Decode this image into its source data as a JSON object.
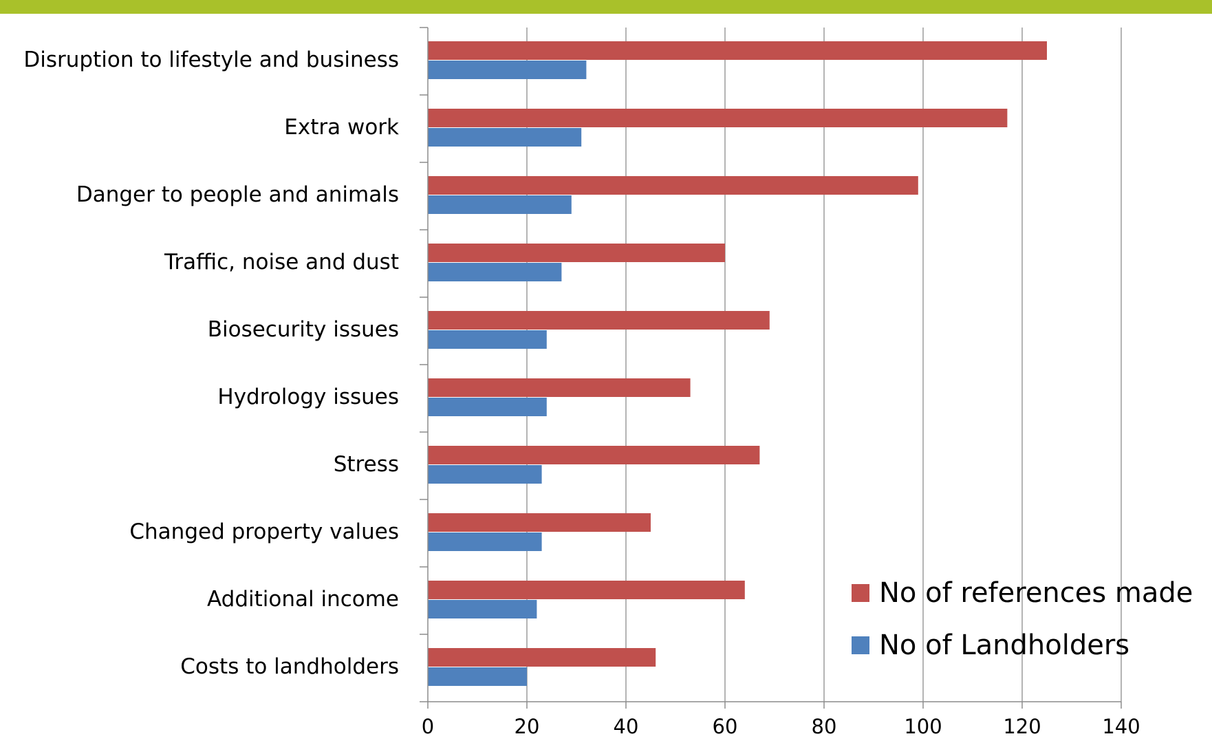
{
  "colors": {
    "top_bar": "#A9C12A",
    "gridline": "#8C8C8C",
    "axis": "#8C8C8C",
    "text": "#000000"
  },
  "chart_data": {
    "type": "bar",
    "orientation": "horizontal",
    "categories": [
      "Disruption to lifestyle and business",
      "Extra work",
      "Danger to people and animals",
      "Traffic, noise and dust",
      "Biosecurity issues",
      "Hydrology issues",
      "Stress",
      "Changed property values",
      "Additional income",
      "Costs to landholders"
    ],
    "series": [
      {
        "name": "No of references made",
        "color": "#C0504D",
        "values": [
          125,
          117,
          99,
          60,
          69,
          53,
          67,
          45,
          64,
          46
        ]
      },
      {
        "name": "No of Landholders",
        "color": "#4F81BD",
        "values": [
          32,
          31,
          29,
          27,
          24,
          24,
          23,
          23,
          22,
          20
        ]
      }
    ],
    "xlim": [
      0,
      140
    ],
    "x_ticks": [
      0,
      20,
      40,
      60,
      80,
      100,
      120,
      140
    ],
    "x_tick_labels": [
      "0",
      "20",
      "40",
      "60",
      "80",
      "100",
      "120",
      "140"
    ],
    "grid": "vertical",
    "legend_position": "bottom-right inside plot"
  }
}
